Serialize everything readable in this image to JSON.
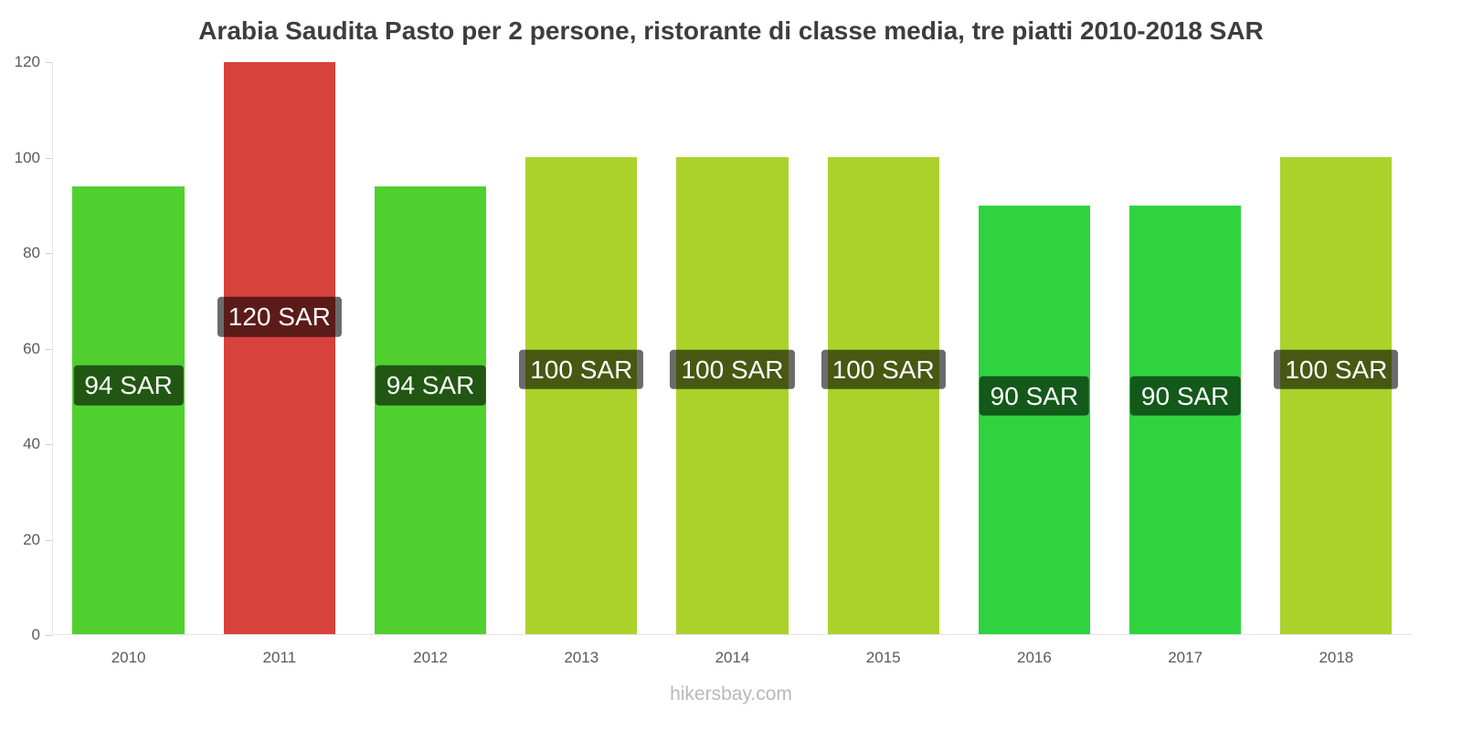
{
  "title": "Arabia Saudita Pasto per 2 persone, ristorante di classe media, tre piatti 2010-2018 SAR",
  "footer": "hikersbay.com",
  "chart_data": {
    "type": "bar",
    "title": "Arabia Saudita Pasto per 2 persone, ristorante di classe media, tre piatti 2010-2018 SAR",
    "categories": [
      "2010",
      "2011",
      "2012",
      "2013",
      "2014",
      "2015",
      "2016",
      "2017",
      "2018"
    ],
    "values": [
      94,
      120,
      94,
      100,
      100,
      100,
      90,
      90,
      100
    ],
    "bar_labels": [
      "94 SAR",
      "120 SAR",
      "94 SAR",
      "100 SAR",
      "100 SAR",
      "100 SAR",
      "90 SAR",
      "90 SAR",
      "100 SAR"
    ],
    "bar_colors": [
      "#50d02f",
      "#d8423c",
      "#50d02f",
      "#aad22b",
      "#aad22b",
      "#aad22b",
      "#2fd33f",
      "#2fd33f",
      "#aad22b"
    ],
    "unit": "SAR",
    "xlabel": "",
    "ylabel": "",
    "ylim": [
      0,
      120
    ],
    "yticks": [
      0,
      20,
      40,
      60,
      80,
      100,
      120
    ],
    "grid": false,
    "legend": false,
    "watermark": "hikersbay.com"
  }
}
